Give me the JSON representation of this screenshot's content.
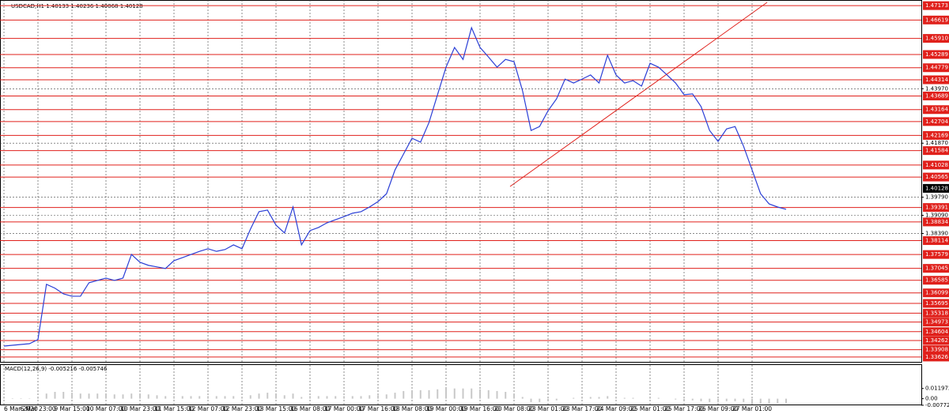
{
  "chart_data": {
    "type": "line",
    "title": "USDCAD,H1  1.40133 1.40236 1.40068 1.40128",
    "categories": [
      "6 Mar 2020",
      null,
      null,
      null,
      "6 Mar 23:00",
      null,
      null,
      null,
      "9 Mar 15:00",
      null,
      null,
      null,
      "10 Mar 07:00",
      null,
      null,
      null,
      "10 Mar 23:00",
      null,
      null,
      null,
      "11 Mar 15:00",
      null,
      null,
      null,
      "12 Mar 07:00",
      null,
      null,
      null,
      "12 Mar 23:00",
      null,
      null,
      null,
      "13 Mar 15:00",
      null,
      null,
      null,
      "16 Mar 08:00",
      null,
      null,
      null,
      "17 Mar 00:00",
      null,
      null,
      null,
      "17 Mar 16:00",
      null,
      null,
      null,
      "18 Mar 08:00",
      null,
      null,
      null,
      "19 Mar 00:00",
      null,
      null,
      null,
      "19 Mar 16:00",
      null,
      null,
      null,
      "20 Mar 08:00",
      null,
      null,
      null,
      "23 Mar 01:00",
      null,
      null,
      null,
      "23 Mar 17:00",
      null,
      null,
      null,
      "24 Mar 09:00",
      null,
      null,
      null,
      "25 Mar 01:00",
      null,
      null,
      null,
      "25 Mar 17:00",
      null,
      null,
      null,
      "26 Mar 09:00",
      null,
      null,
      null,
      "27 Mar 01:00",
      null,
      null,
      null,
      null
    ],
    "series": [
      {
        "color": "#2b3fd6",
        "values": [
          1.3405,
          1.3408,
          1.3411,
          1.3414,
          1.343,
          1.3643,
          1.3628,
          1.3606,
          1.3597,
          1.3597,
          1.3649,
          1.3658,
          1.3667,
          1.3658,
          1.3667,
          1.3758,
          1.3728,
          1.3716,
          1.371,
          1.3704,
          1.3734,
          1.3746,
          1.3758,
          1.377,
          1.378,
          1.377,
          1.3777,
          1.3795,
          1.378,
          1.3856,
          1.3923,
          1.3929,
          1.3871,
          1.3841,
          1.3941,
          1.3795,
          1.385,
          1.3862,
          1.388,
          1.3892,
          1.3904,
          1.3917,
          1.3923,
          1.3941,
          1.3962,
          1.3992,
          1.4084,
          1.4145,
          1.4206,
          1.4191,
          1.4267,
          1.4374,
          1.448,
          1.4556,
          1.451,
          1.4632,
          1.4556,
          1.4519,
          1.448,
          1.451,
          1.4501,
          1.4389,
          1.4236,
          1.4251,
          1.4312,
          1.4358,
          1.4434,
          1.4419,
          1.4434,
          1.445,
          1.4419,
          1.4526,
          1.445,
          1.4419,
          1.4428,
          1.4407,
          1.4495,
          1.448,
          1.445,
          1.4419,
          1.4374,
          1.4377,
          1.4328,
          1.4236,
          1.4194,
          1.4242,
          1.4251,
          1.4175,
          1.4084,
          1.3992,
          1.3953,
          1.3941,
          1.3932
        ]
      },
      {
        "axis": "y2",
        "color": "#c8c8c8",
        "values": [
          0.0005,
          0.0005,
          0.0005,
          0.0004,
          0.001,
          0.006,
          0.008,
          0.008,
          0.007,
          0.006,
          0.006,
          0.006,
          0.005,
          0.005,
          0.005,
          0.006,
          0.006,
          0.005,
          0.004,
          0.003,
          0.003,
          0.003,
          0.003,
          0.003,
          0.003,
          0.003,
          0.003,
          0.003,
          0.002,
          0.004,
          0.006,
          0.007,
          0.005,
          0.004,
          0.006,
          0.002,
          0.003,
          0.003,
          0.003,
          0.003,
          0.003,
          0.003,
          0.003,
          0.004,
          0.004,
          0.005,
          0.007,
          0.009,
          0.01,
          0.01,
          0.01,
          0.011,
          0.012,
          0.012,
          0.012,
          0.012,
          0.011,
          0.01,
          0.009,
          0.008,
          0.006,
          0.002,
          -0.004,
          -0.004,
          -0.003,
          -0.002,
          0.0,
          0.001,
          0.001,
          0.002,
          0.002,
          0.003,
          0.002,
          0.001,
          0.001,
          0.0,
          0.001,
          0.001,
          0.0,
          -0.001,
          -0.002,
          -0.002,
          -0.003,
          -0.004,
          -0.004,
          -0.003,
          -0.003,
          -0.004,
          -0.005,
          -0.006,
          -0.006,
          -0.0055,
          -0.0052
        ]
      }
    ],
    "ylim": [
      1.3344,
      1.4739
    ],
    "yticks": [
      {
        "value": 1.4397,
        "label": "1.43970"
      },
      {
        "value": 1.4187,
        "label": "1.41870"
      },
      {
        "value": 1.3979,
        "label": "1.39790"
      },
      {
        "value": 1.3909,
        "label": "1.39090"
      },
      {
        "value": 1.3839,
        "label": "1.38390"
      }
    ],
    "levels_color": "#e0201b",
    "levels": [
      1.47173,
      1.46619,
      {
        "value": 1.4591,
        "label": "1.45910"
      },
      1.45289,
      1.44779,
      1.44314,
      1.43689,
      1.43164,
      1.42704,
      1.42169,
      1.41584,
      1.41028,
      1.40565,
      1.39391,
      1.38834,
      1.38114,
      1.37579,
      1.37045,
      1.36585,
      1.36099,
      1.35695,
      1.35318,
      1.34973,
      1.34604,
      1.34262,
      1.33908,
      1.33626
    ],
    "last_price": 1.40128,
    "subtitle": "MACD(12,26,9) -0.005216 -0.005746",
    "y2lim": [
      -0.0078,
      0.0396
    ],
    "y2ticks": [
      0.011972,
      {
        "value": 0,
        "label": "0.00"
      },
      -0.007723
    ],
    "grid": true
  }
}
